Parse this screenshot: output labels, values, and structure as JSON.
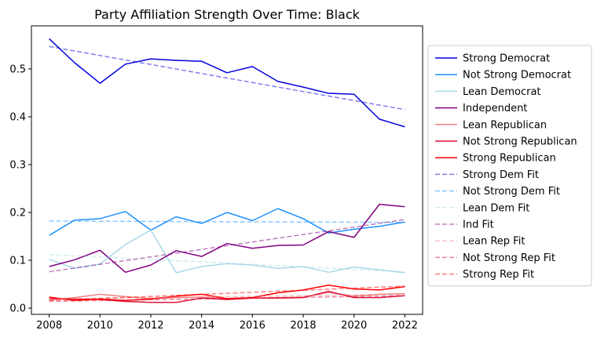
{
  "chart_data": {
    "type": "line",
    "title": "Party Affiliation Strength Over Time: Black",
    "xlabel": "",
    "ylabel": "",
    "xlim": [
      2007.3,
      2022.7
    ],
    "ylim": [
      -0.013,
      0.59
    ],
    "x_ticks": [
      2008,
      2010,
      2012,
      2014,
      2016,
      2018,
      2020,
      2022
    ],
    "y_ticks": [
      0.0,
      0.1,
      0.2,
      0.3,
      0.4,
      0.5
    ],
    "y_tick_labels": [
      "0.0",
      "0.1",
      "0.2",
      "0.3",
      "0.4",
      "0.5"
    ],
    "grid": false,
    "legend_placement": "right-outside",
    "x": [
      2008,
      2009,
      2010,
      2011,
      2012,
      2013,
      2014,
      2015,
      2016,
      2017,
      2018,
      2019,
      2020,
      2021,
      2022
    ],
    "series": [
      {
        "name": "Strong Democrat",
        "color": "#0000dd",
        "dashed": false,
        "alpha": 1,
        "values": [
          0.563,
          0.513,
          0.47,
          0.51,
          0.521,
          0.518,
          0.516,
          0.492,
          0.505,
          0.474,
          0.462,
          0.449,
          0.447,
          0.395,
          0.379
        ]
      },
      {
        "name": "Not Strong Democrat",
        "color": "#1e90ff",
        "dashed": false,
        "alpha": 1,
        "values": [
          0.152,
          0.184,
          0.187,
          0.202,
          0.163,
          0.191,
          0.177,
          0.2,
          0.183,
          0.208,
          0.187,
          0.157,
          0.165,
          0.171,
          0.18
        ]
      },
      {
        "name": "Lean Democrat",
        "color": "#a8d8e8",
        "dashed": false,
        "alpha": 1,
        "values": [
          0.102,
          0.083,
          0.092,
          0.133,
          0.163,
          0.074,
          0.087,
          0.093,
          0.09,
          0.083,
          0.087,
          0.075,
          0.086,
          0.08,
          0.074
        ]
      },
      {
        "name": "Independent",
        "color": "#800080",
        "dashed": false,
        "alpha": 1,
        "values": [
          0.087,
          0.101,
          0.121,
          0.075,
          0.09,
          0.12,
          0.108,
          0.135,
          0.125,
          0.131,
          0.132,
          0.16,
          0.148,
          0.217,
          0.212
        ]
      },
      {
        "name": "Lean Republican",
        "color": "#f08080",
        "dashed": false,
        "alpha": 1,
        "values": [
          0.017,
          0.022,
          0.029,
          0.024,
          0.02,
          0.022,
          0.023,
          0.02,
          0.021,
          0.022,
          0.023,
          0.033,
          0.025,
          0.029,
          0.03
        ]
      },
      {
        "name": "Not Strong Republican",
        "color": "#dc143c",
        "dashed": false,
        "alpha": 1,
        "values": [
          0.02,
          0.019,
          0.018,
          0.014,
          0.012,
          0.012,
          0.021,
          0.018,
          0.021,
          0.021,
          0.022,
          0.035,
          0.022,
          0.022,
          0.026
        ]
      },
      {
        "name": "Strong Republican",
        "color": "#ff0000",
        "dashed": false,
        "alpha": 1,
        "values": [
          0.023,
          0.016,
          0.019,
          0.016,
          0.019,
          0.025,
          0.029,
          0.02,
          0.022,
          0.032,
          0.038,
          0.048,
          0.04,
          0.038,
          0.045
        ]
      },
      {
        "name": "Strong Dem Fit",
        "color": "#0000dd",
        "dashed": true,
        "alpha": 0.5,
        "values": [
          0.547,
          0.5376,
          0.5281,
          0.5187,
          0.5093,
          0.4999,
          0.4904,
          0.481,
          0.4716,
          0.4621,
          0.4527,
          0.4433,
          0.4339,
          0.4244,
          0.415
        ]
      },
      {
        "name": "Not Strong Dem Fit",
        "color": "#1e90ff",
        "dashed": true,
        "alpha": 0.5,
        "values": [
          0.182,
          0.1818,
          0.1816,
          0.1814,
          0.1812,
          0.181,
          0.1808,
          0.1806,
          0.1804,
          0.1802,
          0.18,
          0.1798,
          0.1796,
          0.1794,
          0.1792
        ]
      },
      {
        "name": "Lean Dem Fit",
        "color": "#a8d8e8",
        "dashed": true,
        "alpha": 0.5,
        "values": [
          0.112,
          0.1094,
          0.1069,
          0.1043,
          0.1017,
          0.0991,
          0.0966,
          0.094,
          0.0914,
          0.0889,
          0.0863,
          0.0837,
          0.0811,
          0.0786,
          0.076
        ]
      },
      {
        "name": "Ind Fit",
        "color": "#800080",
        "dashed": true,
        "alpha": 0.5,
        "values": [
          0.076,
          0.0838,
          0.0916,
          0.0994,
          0.1071,
          0.1149,
          0.1227,
          0.1305,
          0.1383,
          0.1461,
          0.1539,
          0.1616,
          0.1694,
          0.1772,
          0.185
        ]
      },
      {
        "name": "Lean Rep Fit",
        "color": "#f08080",
        "dashed": true,
        "alpha": 0.5,
        "values": [
          0.019,
          0.0197,
          0.0204,
          0.0211,
          0.0219,
          0.0226,
          0.0233,
          0.024,
          0.0247,
          0.0254,
          0.0261,
          0.0269,
          0.0276,
          0.0283,
          0.029
        ]
      },
      {
        "name": "Not Strong Rep Fit",
        "color": "#dc143c",
        "dashed": true,
        "alpha": 0.5,
        "values": [
          0.014,
          0.0149,
          0.0157,
          0.0166,
          0.0174,
          0.0183,
          0.0191,
          0.02,
          0.0209,
          0.0217,
          0.0226,
          0.0234,
          0.0243,
          0.0251,
          0.026
        ]
      },
      {
        "name": "Strong Rep Fit",
        "color": "#ff0000",
        "dashed": true,
        "alpha": 0.5,
        "values": [
          0.016,
          0.0181,
          0.0203,
          0.0224,
          0.0246,
          0.0267,
          0.0289,
          0.031,
          0.0331,
          0.0353,
          0.0374,
          0.0396,
          0.0417,
          0.0439,
          0.046
        ]
      }
    ]
  }
}
